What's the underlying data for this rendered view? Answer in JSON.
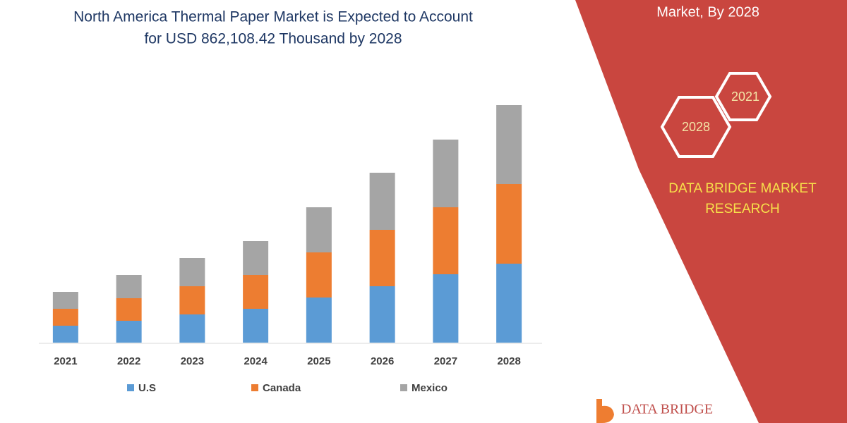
{
  "chart_data": {
    "type": "stacked-bar",
    "title": [
      "North America Thermal Paper Market is Expected to Account",
      "for USD 862,108.42 Thousand by 2028"
    ],
    "categories": [
      "2021",
      "2022",
      "2023",
      "2024",
      "2025",
      "2026",
      "2027",
      "2028"
    ],
    "series": [
      {
        "name": "U.S",
        "color": "#5b9bd5",
        "values": [
          24,
          31,
          40,
          48,
          64,
          80,
          97,
          112
        ]
      },
      {
        "name": "Canada",
        "color": "#ed7d31",
        "values": [
          24,
          32,
          40,
          48,
          64,
          80,
          95,
          113
        ]
      },
      {
        "name": "Mexico",
        "color": "#a5a5a5",
        "values": [
          24,
          33,
          40,
          48,
          64,
          81,
          96,
          112
        ]
      }
    ]
  },
  "panel": {
    "heading": "Market, By 2028",
    "badges": [
      "2021",
      "2028"
    ],
    "brand": [
      "DATA BRIDGE MARKET",
      "RESEARCH"
    ]
  },
  "logo": {
    "text": "DATA BRIDGE"
  }
}
